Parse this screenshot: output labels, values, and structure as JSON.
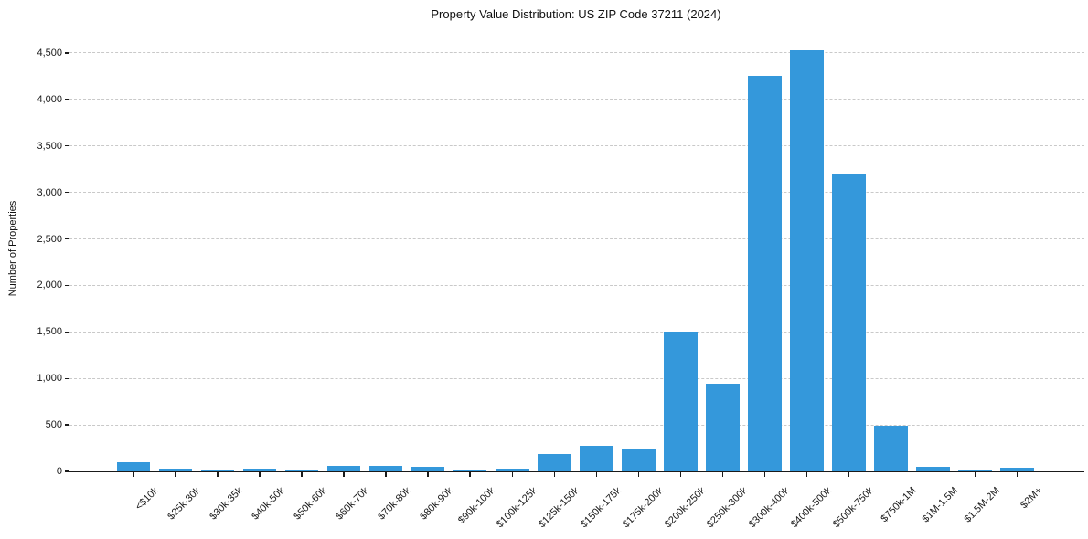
{
  "chart_data": {
    "type": "bar",
    "title": "Property Value Distribution: US ZIP Code 37211 (2024)",
    "xlabel": "",
    "ylabel": "Number of Properties",
    "categories": [
      "<$10k",
      "$25k-30k",
      "$30k-35k",
      "$40k-50k",
      "$50k-60k",
      "$60k-70k",
      "$70k-80k",
      "$80k-90k",
      "$90k-100k",
      "$100k-125k",
      "$125k-150k",
      "$150k-175k",
      "$175k-200k",
      "$200k-250k",
      "$250k-300k",
      "$300k-400k",
      "$400k-500k",
      "$500k-750k",
      "$750k-1M",
      "$1M-1.5M",
      "$1.5M-2M",
      "$2M+"
    ],
    "values": [
      100,
      30,
      10,
      30,
      15,
      55,
      55,
      50,
      12,
      25,
      190,
      280,
      240,
      1500,
      940,
      4250,
      4530,
      3190,
      490,
      50,
      18,
      42
    ],
    "yticks": [
      0,
      500,
      1000,
      1500,
      2000,
      2500,
      3000,
      3500,
      4000,
      4500
    ],
    "ylim": [
      0,
      4780
    ],
    "grid": {
      "axis": "y",
      "style": "dashed",
      "color": "#c9c9c9"
    },
    "legend": "none",
    "colors": {
      "bar": "#3498db",
      "axis": "#1a1a1a",
      "gridline": "#c9c9c9",
      "text": "#1a1a1a",
      "background": "#ffffff"
    }
  }
}
